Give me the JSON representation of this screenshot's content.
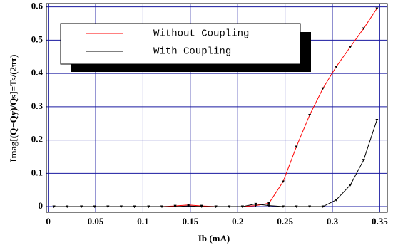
{
  "chart_data": {
    "type": "line",
    "xlabel": "Ib (mA)",
    "ylabel": "Imag[(Q−Qy)/Qs]=Ts/(2πτ)",
    "x": [
      0.006,
      0.02,
      0.035,
      0.049,
      0.063,
      0.077,
      0.091,
      0.106,
      0.12,
      0.134,
      0.148,
      0.162,
      0.177,
      0.191,
      0.205,
      0.219,
      0.233,
      0.248,
      0.262,
      0.276,
      0.29,
      0.304,
      0.319,
      0.333,
      0.347
    ],
    "series": [
      {
        "name": "Without Coupling",
        "color": "#ff0000",
        "values": [
          0,
          0,
          0,
          0,
          0,
          0,
          0,
          0,
          0,
          0.002,
          0.005,
          0.002,
          0,
          0,
          0,
          0.003,
          0.01,
          0.075,
          0.18,
          0.275,
          0.355,
          0.42,
          0.48,
          0.535,
          0.595
        ]
      },
      {
        "name": "With Coupling",
        "color": "#000000",
        "values": [
          0,
          0,
          0,
          0,
          0,
          0,
          0,
          0,
          0,
          0,
          0.002,
          0,
          0,
          0,
          0,
          0.008,
          0.003,
          0,
          0,
          0,
          0,
          0.02,
          0.065,
          0.14,
          0.26
        ]
      }
    ],
    "marker_color": "#000000",
    "xlim": [
      -0.002,
      0.358
    ],
    "ylim": [
      -0.017,
      0.61
    ],
    "xticks": [
      0,
      0.05,
      0.1,
      0.15,
      0.2,
      0.25,
      0.3,
      0.35
    ],
    "yticks": [
      0,
      0.1,
      0.2,
      0.3,
      0.4,
      0.5,
      0.6
    ],
    "grid": true,
    "grid_color": "#1a1aa0"
  }
}
